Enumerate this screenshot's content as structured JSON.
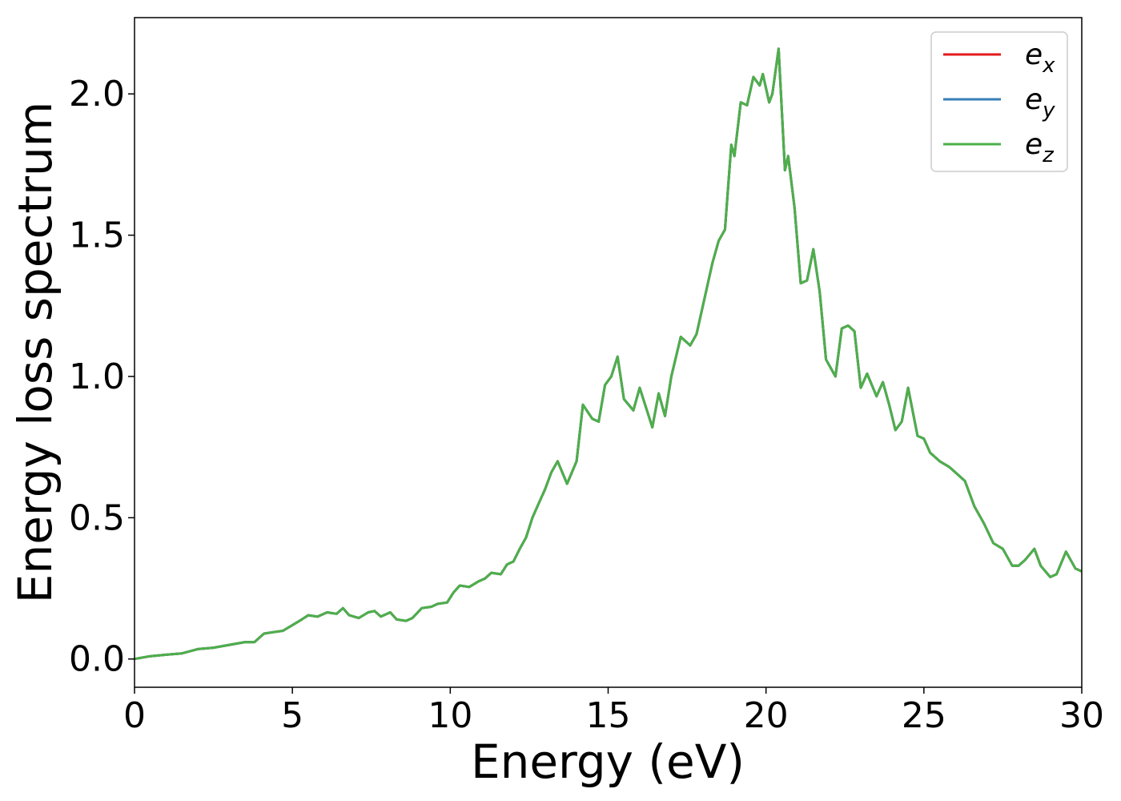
{
  "chart_data": {
    "type": "line",
    "xlabel": "Energy (eV)",
    "ylabel": "Energy loss spectrum",
    "xlim": [
      0,
      30
    ],
    "ylim": [
      -0.1,
      2.27
    ],
    "xticks": [
      0,
      5,
      10,
      15,
      20,
      25,
      30
    ],
    "xtick_labels": [
      "0",
      "5",
      "10",
      "15",
      "20",
      "25",
      "30"
    ],
    "yticks": [
      0.0,
      0.5,
      1.0,
      1.5,
      2.0
    ],
    "ytick_labels": [
      "0.0",
      "0.5",
      "1.0",
      "1.5",
      "2.0"
    ],
    "grid": false,
    "legend_position": "top-right",
    "legend": [
      {
        "base": "e",
        "sub": "x",
        "color": "#e41a1c"
      },
      {
        "base": "e",
        "sub": "y",
        "color": "#377eb8"
      },
      {
        "base": "e",
        "sub": "z",
        "color": "#4daf4a"
      }
    ],
    "x": [
      0,
      0.5,
      1.0,
      1.5,
      2.0,
      2.5,
      3.0,
      3.5,
      3.8,
      4.1,
      4.4,
      4.7,
      5.0,
      5.3,
      5.5,
      5.8,
      6.1,
      6.4,
      6.6,
      6.8,
      7.1,
      7.4,
      7.6,
      7.8,
      8.1,
      8.3,
      8.6,
      8.8,
      9.1,
      9.4,
      9.6,
      9.9,
      10.1,
      10.3,
      10.6,
      10.9,
      11.1,
      11.3,
      11.6,
      11.8,
      12.0,
      12.2,
      12.4,
      12.6,
      12.8,
      13.0,
      13.2,
      13.4,
      13.7,
      14.0,
      14.2,
      14.5,
      14.7,
      14.9,
      15.1,
      15.3,
      15.5,
      15.8,
      16.0,
      16.2,
      16.4,
      16.6,
      16.8,
      17.0,
      17.3,
      17.6,
      17.8,
      18.0,
      18.3,
      18.5,
      18.7,
      18.9,
      19.0,
      19.2,
      19.4,
      19.6,
      19.8,
      19.9,
      20.1,
      20.2,
      20.4,
      20.6,
      20.7,
      20.9,
      21.1,
      21.3,
      21.5,
      21.7,
      21.9,
      22.2,
      22.4,
      22.6,
      22.8,
      23.0,
      23.2,
      23.5,
      23.7,
      23.9,
      24.1,
      24.3,
      24.5,
      24.8,
      25.0,
      25.2,
      25.5,
      25.8,
      26.0,
      26.3,
      26.6,
      26.9,
      27.2,
      27.5,
      27.8,
      28.0,
      28.2,
      28.5,
      28.7,
      29.0,
      29.2,
      29.5,
      29.8,
      30.0
    ],
    "series": [
      {
        "name": "e_x",
        "values": [
          0.0,
          0.01,
          0.015,
          0.02,
          0.035,
          0.04,
          0.05,
          0.06,
          0.06,
          0.09,
          0.095,
          0.1,
          0.12,
          0.14,
          0.155,
          0.15,
          0.165,
          0.16,
          0.18,
          0.155,
          0.145,
          0.165,
          0.17,
          0.15,
          0.165,
          0.14,
          0.135,
          0.145,
          0.18,
          0.185,
          0.195,
          0.2,
          0.235,
          0.26,
          0.255,
          0.275,
          0.285,
          0.305,
          0.3,
          0.335,
          0.345,
          0.39,
          0.43,
          0.5,
          0.55,
          0.6,
          0.66,
          0.7,
          0.62,
          0.7,
          0.9,
          0.85,
          0.84,
          0.97,
          1.0,
          1.07,
          0.92,
          0.88,
          0.96,
          0.89,
          0.82,
          0.94,
          0.86,
          1.0,
          1.14,
          1.11,
          1.15,
          1.25,
          1.4,
          1.48,
          1.52,
          1.82,
          1.78,
          1.97,
          1.96,
          2.06,
          2.03,
          2.07,
          1.97,
          2.0,
          2.16,
          1.73,
          1.78,
          1.6,
          1.33,
          1.34,
          1.45,
          1.3,
          1.06,
          1.0,
          1.17,
          1.18,
          1.16,
          0.96,
          1.01,
          0.93,
          0.98,
          0.9,
          0.81,
          0.84,
          0.96,
          0.79,
          0.78,
          0.73,
          0.7,
          0.68,
          0.66,
          0.63,
          0.54,
          0.48,
          0.41,
          0.39,
          0.33,
          0.33,
          0.35,
          0.39,
          0.33,
          0.29,
          0.3,
          0.38,
          0.32,
          0.31
        ]
      },
      {
        "name": "e_y",
        "values": [
          0.0,
          0.01,
          0.015,
          0.02,
          0.035,
          0.04,
          0.05,
          0.06,
          0.06,
          0.09,
          0.095,
          0.1,
          0.12,
          0.14,
          0.155,
          0.15,
          0.165,
          0.16,
          0.18,
          0.155,
          0.145,
          0.165,
          0.17,
          0.15,
          0.165,
          0.14,
          0.135,
          0.145,
          0.18,
          0.185,
          0.195,
          0.2,
          0.235,
          0.26,
          0.255,
          0.275,
          0.285,
          0.305,
          0.3,
          0.335,
          0.345,
          0.39,
          0.43,
          0.5,
          0.55,
          0.6,
          0.66,
          0.7,
          0.62,
          0.7,
          0.9,
          0.85,
          0.84,
          0.97,
          1.0,
          1.07,
          0.92,
          0.88,
          0.96,
          0.89,
          0.82,
          0.94,
          0.86,
          1.0,
          1.14,
          1.11,
          1.15,
          1.25,
          1.4,
          1.48,
          1.52,
          1.82,
          1.78,
          1.97,
          1.96,
          2.06,
          2.03,
          2.07,
          1.97,
          2.0,
          2.16,
          1.73,
          1.78,
          1.6,
          1.33,
          1.34,
          1.45,
          1.3,
          1.06,
          1.0,
          1.17,
          1.18,
          1.16,
          0.96,
          1.01,
          0.93,
          0.98,
          0.9,
          0.81,
          0.84,
          0.96,
          0.79,
          0.78,
          0.73,
          0.7,
          0.68,
          0.66,
          0.63,
          0.54,
          0.48,
          0.41,
          0.39,
          0.33,
          0.33,
          0.35,
          0.39,
          0.33,
          0.29,
          0.3,
          0.38,
          0.32,
          0.31
        ]
      },
      {
        "name": "e_z",
        "values": [
          0.0,
          0.01,
          0.015,
          0.02,
          0.035,
          0.04,
          0.05,
          0.06,
          0.06,
          0.09,
          0.095,
          0.1,
          0.12,
          0.14,
          0.155,
          0.15,
          0.165,
          0.16,
          0.18,
          0.155,
          0.145,
          0.165,
          0.17,
          0.15,
          0.165,
          0.14,
          0.135,
          0.145,
          0.18,
          0.185,
          0.195,
          0.2,
          0.235,
          0.26,
          0.255,
          0.275,
          0.285,
          0.305,
          0.3,
          0.335,
          0.345,
          0.39,
          0.43,
          0.5,
          0.55,
          0.6,
          0.66,
          0.7,
          0.62,
          0.7,
          0.9,
          0.85,
          0.84,
          0.97,
          1.0,
          1.07,
          0.92,
          0.88,
          0.96,
          0.89,
          0.82,
          0.94,
          0.86,
          1.0,
          1.14,
          1.11,
          1.15,
          1.25,
          1.4,
          1.48,
          1.52,
          1.82,
          1.78,
          1.97,
          1.96,
          2.06,
          2.03,
          2.07,
          1.97,
          2.0,
          2.16,
          1.73,
          1.78,
          1.6,
          1.33,
          1.34,
          1.45,
          1.3,
          1.06,
          1.0,
          1.17,
          1.18,
          1.16,
          0.96,
          1.01,
          0.93,
          0.98,
          0.9,
          0.81,
          0.84,
          0.96,
          0.79,
          0.78,
          0.73,
          0.7,
          0.68,
          0.66,
          0.63,
          0.54,
          0.48,
          0.41,
          0.39,
          0.33,
          0.33,
          0.35,
          0.39,
          0.33,
          0.29,
          0.3,
          0.38,
          0.32,
          0.31
        ]
      }
    ]
  }
}
